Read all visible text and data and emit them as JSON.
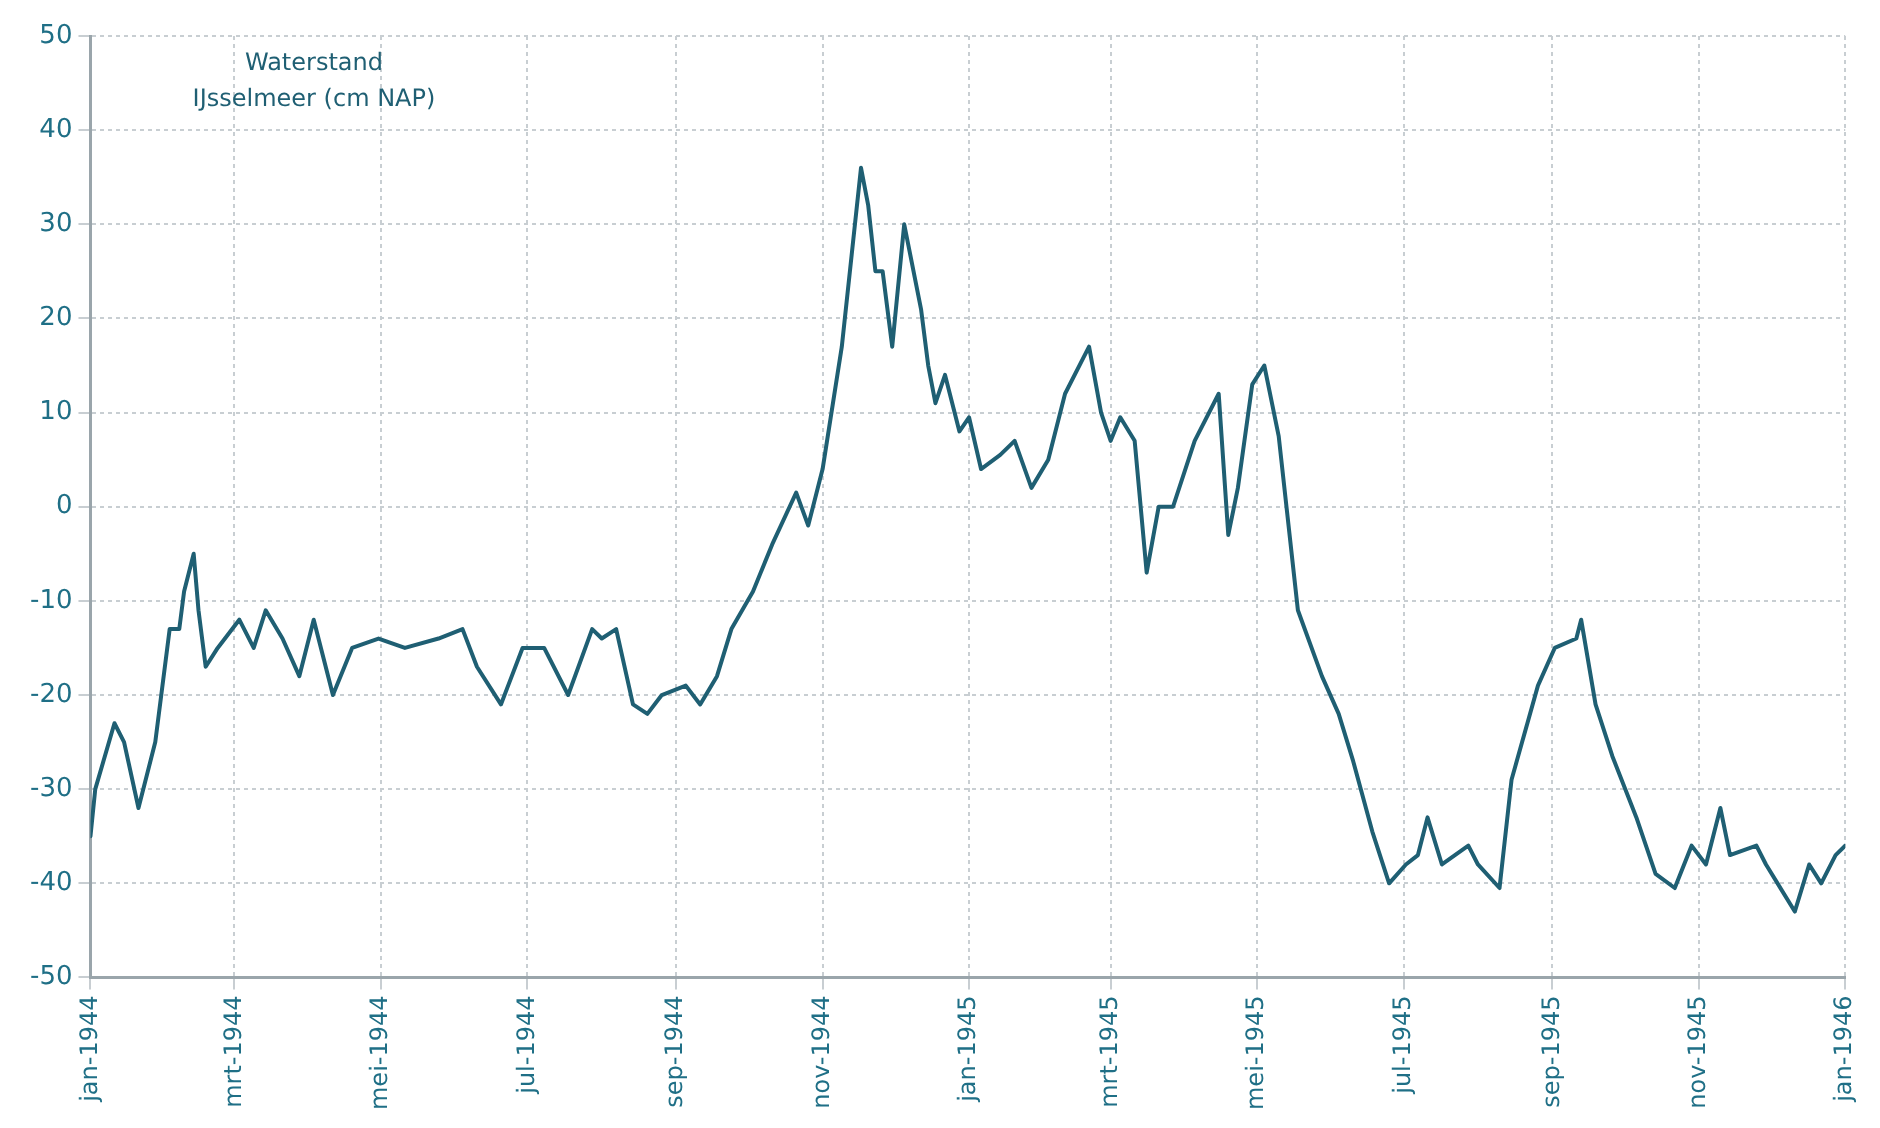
{
  "chart_data": {
    "type": "line",
    "title": "Waterstand IJsselmeer (cm NAP)",
    "x": [
      "1944-01-01",
      "1944-01-03",
      "1944-01-11",
      "1944-01-15",
      "1944-01-21",
      "1944-01-28",
      "1944-02-03",
      "1944-02-07",
      "1944-02-09",
      "1944-02-13",
      "1944-02-15",
      "1944-02-18",
      "1944-02-23",
      "1944-03-03",
      "1944-03-09",
      "1944-03-14",
      "1944-03-21",
      "1944-03-28",
      "1944-04-03",
      "1944-04-11",
      "1944-04-19",
      "1944-04-30",
      "1944-05-11",
      "1944-05-25",
      "1944-06-04",
      "1944-06-10",
      "1944-06-20",
      "1944-06-29",
      "1944-07-08",
      "1944-07-18",
      "1944-07-28",
      "1944-08-01",
      "1944-08-07",
      "1944-08-14",
      "1944-08-20",
      "1944-08-26",
      "1944-09-05",
      "1944-09-11",
      "1944-09-18",
      "1944-09-24",
      "1944-10-03",
      "1944-10-11",
      "1944-10-21",
      "1944-10-26",
      "1944-11-01",
      "1944-11-09",
      "1944-11-17",
      "1944-11-20",
      "1944-11-23",
      "1944-11-26",
      "1944-11-30",
      "1944-12-05",
      "1944-12-12",
      "1944-12-15",
      "1944-12-18",
      "1944-12-22",
      "1944-12-28",
      "1945-01-01",
      "1945-01-06",
      "1945-01-14",
      "1945-01-20",
      "1945-01-27",
      "1945-02-03",
      "1945-02-10",
      "1945-02-20",
      "1945-02-25",
      "1945-03-01",
      "1945-03-05",
      "1945-03-11",
      "1945-03-16",
      "1945-03-21",
      "1945-03-27",
      "1945-04-05",
      "1945-04-15",
      "1945-04-19",
      "1945-04-23",
      "1945-04-29",
      "1945-05-04",
      "1945-05-10",
      "1945-05-18",
      "1945-05-28",
      "1945-06-04",
      "1945-06-10",
      "1945-06-18",
      "1945-06-25",
      "1945-07-02",
      "1945-07-07",
      "1945-07-11",
      "1945-07-17",
      "1945-07-28",
      "1945-08-01",
      "1945-08-10",
      "1945-08-15",
      "1945-08-26",
      "1945-09-02",
      "1945-09-11",
      "1945-09-13",
      "1945-09-19",
      "1945-09-26",
      "1945-10-06",
      "1945-10-14",
      "1945-10-22",
      "1945-10-29",
      "1945-11-04",
      "1945-11-10",
      "1945-11-14",
      "1945-11-25",
      "1945-11-29",
      "1945-12-11",
      "1945-12-17",
      "1945-12-22",
      "1945-12-28",
      "1946-01-01"
    ],
    "series": [
      {
        "color": "#1f5f73",
        "values": [
          -35,
          -30,
          -23,
          -25,
          -32,
          -25,
          -13,
          -13,
          -9,
          -5,
          -11,
          -17,
          -15,
          -12,
          -15,
          -11,
          -14,
          -18,
          -12,
          -20,
          -15,
          -14,
          -15,
          -14,
          -13,
          -17,
          -21,
          -15,
          -15,
          -20,
          -13,
          -14,
          -13,
          -21,
          -22,
          -20,
          -19,
          -21,
          -18,
          -13,
          -9,
          -4,
          1.5,
          -2,
          4,
          17,
          36,
          32,
          25,
          25,
          17,
          30,
          21,
          15,
          11,
          14,
          8,
          9.5,
          4,
          5.5,
          7,
          2,
          5,
          12,
          17,
          10,
          7,
          9.5,
          7,
          -7,
          0,
          0,
          7,
          12,
          -3,
          2,
          13,
          15,
          7.5,
          -11,
          -18,
          -22,
          -27,
          -34.5,
          -40,
          -38,
          -37,
          -33,
          -38,
          -36,
          -38,
          -40.5,
          -29,
          -19,
          -15,
          -14,
          -12,
          -21,
          -26.5,
          -33,
          -39,
          -40.5,
          -36,
          -38,
          -32,
          -37,
          -36,
          -38,
          -43,
          -38,
          -40,
          -37,
          -36
        ]
      }
    ],
    "xlim": [
      "1944-01-01",
      "1946-01-01"
    ],
    "xticks": [
      {
        "value": "1944-01-01",
        "label": "jan-1944"
      },
      {
        "value": "1944-03-01",
        "label": "mrt-1944"
      },
      {
        "value": "1944-05-01",
        "label": "mei-1944"
      },
      {
        "value": "1944-07-01",
        "label": "jul-1944"
      },
      {
        "value": "1944-09-01",
        "label": "sep-1944"
      },
      {
        "value": "1944-11-01",
        "label": "nov-1944"
      },
      {
        "value": "1945-01-01",
        "label": "jan-1945"
      },
      {
        "value": "1945-03-01",
        "label": "mrt-1945"
      },
      {
        "value": "1945-05-01",
        "label": "mei-1945"
      },
      {
        "value": "1945-07-01",
        "label": "jul-1945"
      },
      {
        "value": "1945-09-01",
        "label": "sep-1945"
      },
      {
        "value": "1945-11-01",
        "label": "nov-1945"
      },
      {
        "value": "1946-01-01",
        "label": "jan-1946"
      }
    ],
    "ylim": [
      -50,
      50
    ],
    "yticks": [
      -50,
      -40,
      -30,
      -20,
      -10,
      0,
      10,
      20,
      30,
      40,
      50
    ],
    "grid": true,
    "legend": false,
    "marker": "none",
    "line_style": "solid"
  }
}
